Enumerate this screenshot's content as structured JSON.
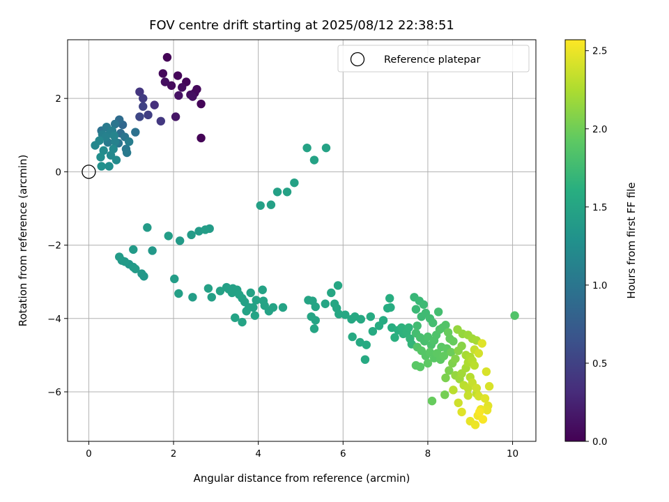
{
  "chart_data": {
    "type": "scatter",
    "title": "FOV centre drift starting at 2025/08/12 22:38:51",
    "xlabel": "Angular distance from reference (arcmin)",
    "ylabel": "Rotation from reference (arcmin)",
    "xlim": [
      -0.5,
      10.55
    ],
    "ylim": [
      -7.35,
      3.6
    ],
    "xticks": [
      0,
      2,
      4,
      6,
      8,
      10
    ],
    "yticks": [
      -6,
      -4,
      -2,
      0,
      2
    ],
    "grid": true,
    "legend": {
      "position": "top-right",
      "entries": [
        "Reference platepar"
      ]
    },
    "colorbar": {
      "label": "Hours from first FF file",
      "colormap": "viridis",
      "range": [
        0,
        2.57
      ],
      "ticks": [
        0.0,
        0.5,
        1.0,
        1.5,
        2.0,
        2.5
      ],
      "tick_labels": [
        "0.0",
        "0.5",
        "1.0",
        "1.5",
        "2.0",
        "2.5"
      ]
    },
    "reference_point": {
      "name": "Reference platepar",
      "x": 0,
      "y": 0
    },
    "series": [
      {
        "name": "FOV centre",
        "points": [
          [
            1.85,
            3.12,
            0.02
          ],
          [
            1.75,
            2.68,
            0.05
          ],
          [
            2.1,
            2.62,
            0.04
          ],
          [
            2.3,
            2.45,
            0.03
          ],
          [
            2.55,
            2.25,
            0.06
          ],
          [
            2.2,
            2.3,
            0.08
          ],
          [
            1.95,
            2.35,
            0.07
          ],
          [
            1.8,
            2.45,
            0.1
          ],
          [
            2.4,
            2.1,
            0.09
          ],
          [
            2.5,
            2.15,
            0.05
          ],
          [
            2.65,
            1.85,
            0.03
          ],
          [
            2.12,
            2.08,
            0.12
          ],
          [
            2.45,
            2.05,
            0.11
          ],
          [
            2.05,
            1.5,
            0.15
          ],
          [
            2.65,
            0.92,
            0.02
          ],
          [
            1.2,
            2.18,
            0.4
          ],
          [
            1.28,
            2.0,
            0.45
          ],
          [
            1.55,
            1.82,
            0.35
          ],
          [
            1.28,
            1.78,
            0.5
          ],
          [
            1.7,
            1.38,
            0.42
          ],
          [
            1.4,
            1.55,
            0.48
          ],
          [
            1.2,
            1.5,
            0.55
          ],
          [
            0.72,
            1.42,
            0.9
          ],
          [
            0.8,
            1.28,
            0.85
          ],
          [
            0.62,
            1.3,
            1.0
          ],
          [
            0.42,
            1.22,
            1.05
          ],
          [
            0.3,
            1.12,
            0.95
          ],
          [
            0.55,
            1.12,
            1.1
          ],
          [
            0.75,
            1.05,
            0.92
          ],
          [
            0.85,
            0.95,
            1.0
          ],
          [
            0.95,
            0.82,
            1.08
          ],
          [
            0.6,
            0.98,
            1.15
          ],
          [
            0.4,
            0.95,
            1.12
          ],
          [
            0.25,
            0.85,
            1.18
          ],
          [
            0.45,
            0.8,
            1.05
          ],
          [
            0.7,
            0.78,
            0.98
          ],
          [
            0.88,
            0.62,
            1.02
          ],
          [
            0.58,
            0.62,
            1.2
          ],
          [
            0.35,
            0.58,
            1.22
          ],
          [
            0.15,
            0.72,
            1.18
          ],
          [
            0.28,
            0.4,
            1.25
          ],
          [
            0.52,
            0.45,
            1.2
          ],
          [
            0.65,
            0.32,
            1.22
          ],
          [
            0.3,
            0.15,
            1.28
          ],
          [
            0.48,
            0.15,
            1.25
          ],
          [
            0.9,
            0.52,
            1.05
          ],
          [
            1.1,
            1.08,
            0.95
          ],
          [
            0.32,
            1.02,
            1.1
          ],
          [
            0.5,
            1.05,
            1.1
          ],
          [
            0.62,
            0.82,
            1.12
          ],
          [
            0.72,
            -2.32,
            1.4
          ],
          [
            0.85,
            -2.45,
            1.38
          ],
          [
            0.78,
            -2.42,
            1.36
          ],
          [
            0.95,
            -2.52,
            1.35
          ],
          [
            1.05,
            -2.6,
            1.38
          ],
          [
            1.1,
            -2.65,
            1.4
          ],
          [
            1.25,
            -2.78,
            1.36
          ],
          [
            1.3,
            -2.85,
            1.35
          ],
          [
            1.05,
            -2.12,
            1.38
          ],
          [
            1.5,
            -2.15,
            1.36
          ],
          [
            1.38,
            -1.52,
            1.4
          ],
          [
            1.88,
            -1.75,
            1.42
          ],
          [
            2.15,
            -1.88,
            1.38
          ],
          [
            2.42,
            -1.72,
            1.4
          ],
          [
            2.6,
            -1.62,
            1.38
          ],
          [
            2.75,
            -1.58,
            1.42
          ],
          [
            2.85,
            -1.55,
            1.4
          ],
          [
            2.02,
            -2.92,
            1.42
          ],
          [
            2.12,
            -3.32,
            1.44
          ],
          [
            2.45,
            -3.42,
            1.42
          ],
          [
            2.82,
            -3.18,
            1.45
          ],
          [
            2.9,
            -3.42,
            1.44
          ],
          [
            3.1,
            -3.25,
            1.46
          ],
          [
            3.25,
            -3.15,
            1.44
          ],
          [
            3.38,
            -3.3,
            1.46
          ],
          [
            3.4,
            -3.18,
            1.45
          ],
          [
            3.5,
            -3.22,
            1.46
          ],
          [
            3.55,
            -3.35,
            1.47
          ],
          [
            3.62,
            -3.45,
            1.46
          ],
          [
            3.68,
            -3.55,
            1.45
          ],
          [
            3.72,
            -3.8,
            1.47
          ],
          [
            3.78,
            -3.7,
            1.46
          ],
          [
            3.82,
            -3.3,
            1.46
          ],
          [
            3.95,
            -3.5,
            1.47
          ],
          [
            3.62,
            -4.1,
            1.48
          ],
          [
            3.45,
            -3.98,
            1.48
          ],
          [
            3.92,
            -3.92,
            1.48
          ],
          [
            4.1,
            -3.22,
            1.47
          ],
          [
            4.12,
            -3.52,
            1.48
          ],
          [
            4.15,
            -3.65,
            1.48
          ],
          [
            4.25,
            -3.8,
            1.47
          ],
          [
            4.35,
            -3.7,
            1.48
          ],
          [
            4.58,
            -3.7,
            1.48
          ],
          [
            3.3,
            -3.2,
            1.45
          ],
          [
            3.88,
            -3.7,
            1.46
          ],
          [
            4.05,
            -0.92,
            1.45
          ],
          [
            4.3,
            -0.9,
            1.45
          ],
          [
            4.45,
            -0.55,
            1.45
          ],
          [
            4.68,
            -0.55,
            1.46
          ],
          [
            4.85,
            -0.3,
            1.46
          ],
          [
            5.15,
            0.65,
            1.47
          ],
          [
            5.32,
            0.32,
            1.47
          ],
          [
            5.6,
            0.65,
            1.47
          ],
          [
            5.18,
            -3.5,
            1.5
          ],
          [
            5.28,
            -3.52,
            1.5
          ],
          [
            5.35,
            -3.68,
            1.5
          ],
          [
            5.25,
            -3.95,
            1.51
          ],
          [
            5.35,
            -4.05,
            1.5
          ],
          [
            5.32,
            -4.28,
            1.51
          ],
          [
            5.58,
            -3.6,
            1.51
          ],
          [
            5.72,
            -3.3,
            1.52
          ],
          [
            5.88,
            -3.1,
            1.52
          ],
          [
            5.8,
            -3.6,
            1.52
          ],
          [
            5.85,
            -3.72,
            1.52
          ],
          [
            5.9,
            -3.88,
            1.53
          ],
          [
            6.05,
            -3.9,
            1.53
          ],
          [
            6.2,
            -4.02,
            1.53
          ],
          [
            6.28,
            -3.95,
            1.54
          ],
          [
            6.42,
            -4.02,
            1.54
          ],
          [
            6.22,
            -4.5,
            1.55
          ],
          [
            6.4,
            -4.65,
            1.55
          ],
          [
            6.55,
            -4.72,
            1.56
          ],
          [
            6.52,
            -5.12,
            1.55
          ],
          [
            6.65,
            -3.95,
            1.56
          ],
          [
            6.85,
            -4.2,
            1.57
          ],
          [
            6.95,
            -4.05,
            1.57
          ],
          [
            6.7,
            -4.35,
            1.56
          ],
          [
            7.05,
            -3.72,
            1.58
          ],
          [
            7.12,
            -3.7,
            1.58
          ],
          [
            7.1,
            -3.45,
            1.6
          ],
          [
            7.15,
            -4.25,
            1.6
          ],
          [
            7.22,
            -4.52,
            1.62
          ],
          [
            7.3,
            -4.32,
            1.62
          ],
          [
            7.38,
            -4.25,
            1.64
          ],
          [
            7.42,
            -4.42,
            1.64
          ],
          [
            7.5,
            -4.38,
            1.66
          ],
          [
            7.55,
            -4.25,
            1.66
          ],
          [
            7.58,
            -4.55,
            1.68
          ],
          [
            7.62,
            -4.7,
            1.68
          ],
          [
            7.68,
            -3.42,
            1.7
          ],
          [
            7.72,
            -3.75,
            1.72
          ],
          [
            7.8,
            -3.52,
            1.72
          ],
          [
            7.85,
            -3.95,
            1.74
          ],
          [
            7.9,
            -3.62,
            1.74
          ],
          [
            7.95,
            -3.85,
            1.75
          ],
          [
            8.05,
            -4.0,
            1.76
          ],
          [
            8.12,
            -4.12,
            1.78
          ],
          [
            8.25,
            -3.82,
            1.78
          ],
          [
            7.75,
            -4.2,
            1.76
          ],
          [
            7.72,
            -4.4,
            1.78
          ],
          [
            7.82,
            -4.52,
            1.8
          ],
          [
            7.92,
            -4.62,
            1.8
          ],
          [
            8.0,
            -4.5,
            1.82
          ],
          [
            8.08,
            -4.72,
            1.82
          ],
          [
            8.15,
            -4.6,
            1.84
          ],
          [
            8.2,
            -4.45,
            1.84
          ],
          [
            8.28,
            -4.3,
            1.85
          ],
          [
            8.35,
            -4.25,
            1.86
          ],
          [
            8.42,
            -4.18,
            1.86
          ],
          [
            7.75,
            -4.78,
            1.86
          ],
          [
            7.85,
            -4.88,
            1.88
          ],
          [
            7.95,
            -5.02,
            1.88
          ],
          [
            8.05,
            -4.92,
            1.9
          ],
          [
            8.15,
            -5.08,
            1.9
          ],
          [
            8.22,
            -4.95,
            1.92
          ],
          [
            8.3,
            -5.12,
            1.92
          ],
          [
            8.38,
            -5.02,
            1.94
          ],
          [
            7.72,
            -5.28,
            1.9
          ],
          [
            7.82,
            -5.32,
            1.9
          ],
          [
            8.0,
            -5.22,
            1.92
          ],
          [
            8.32,
            -4.78,
            1.9
          ],
          [
            8.45,
            -4.82,
            1.92
          ],
          [
            8.52,
            -4.55,
            1.95
          ],
          [
            8.6,
            -4.62,
            1.96
          ],
          [
            8.48,
            -4.38,
            1.96
          ],
          [
            8.55,
            -4.92,
            1.98
          ],
          [
            8.1,
            -6.25,
            1.96
          ],
          [
            8.4,
            -6.08,
            2.02
          ],
          [
            8.42,
            -5.62,
            2.05
          ],
          [
            8.5,
            -5.42,
            2.05
          ],
          [
            8.58,
            -5.22,
            2.06
          ],
          [
            8.65,
            -5.1,
            2.08
          ],
          [
            8.72,
            -4.88,
            2.1
          ],
          [
            8.8,
            -4.75,
            2.1
          ],
          [
            8.7,
            -4.3,
            2.15
          ],
          [
            8.82,
            -4.42,
            2.15
          ],
          [
            8.95,
            -4.45,
            2.18
          ],
          [
            9.05,
            -4.55,
            2.2
          ],
          [
            9.15,
            -4.6,
            2.22
          ],
          [
            10.05,
            -3.92,
            1.85
          ],
          [
            8.65,
            -5.55,
            2.15
          ],
          [
            8.75,
            -5.65,
            2.18
          ],
          [
            8.8,
            -5.5,
            2.2
          ],
          [
            8.9,
            -5.35,
            2.22
          ],
          [
            8.95,
            -5.2,
            2.25
          ],
          [
            9.0,
            -5.05,
            2.25
          ],
          [
            9.05,
            -5.15,
            2.28
          ],
          [
            9.1,
            -5.28,
            2.3
          ],
          [
            8.85,
            -5.82,
            2.3
          ],
          [
            8.95,
            -5.9,
            2.32
          ],
          [
            9.05,
            -5.75,
            2.35
          ],
          [
            9.15,
            -5.9,
            2.38
          ],
          [
            9.2,
            -6.12,
            2.4
          ],
          [
            8.72,
            -6.3,
            2.38
          ],
          [
            8.95,
            -6.1,
            2.35
          ],
          [
            8.8,
            -6.55,
            2.45
          ],
          [
            9.0,
            -6.8,
            2.48
          ],
          [
            9.12,
            -6.9,
            2.5
          ],
          [
            9.18,
            -6.65,
            2.52
          ],
          [
            9.25,
            -6.48,
            2.5
          ],
          [
            9.4,
            -6.5,
            2.48
          ],
          [
            9.42,
            -6.38,
            2.46
          ],
          [
            9.35,
            -6.18,
            2.45
          ],
          [
            9.38,
            -5.45,
            2.42
          ],
          [
            9.45,
            -5.85,
            2.42
          ],
          [
            9.28,
            -4.68,
            2.45
          ],
          [
            9.2,
            -4.95,
            2.4
          ],
          [
            9.1,
            -4.85,
            2.35
          ],
          [
            8.6,
            -5.95,
            2.3
          ],
          [
            9.22,
            -6.55,
            2.55
          ],
          [
            9.3,
            -6.75,
            2.55
          ],
          [
            9.15,
            -6.05,
            2.32
          ],
          [
            9.0,
            -5.6,
            2.28
          ],
          [
            8.9,
            -5.0,
            2.22
          ]
        ]
      }
    ]
  }
}
